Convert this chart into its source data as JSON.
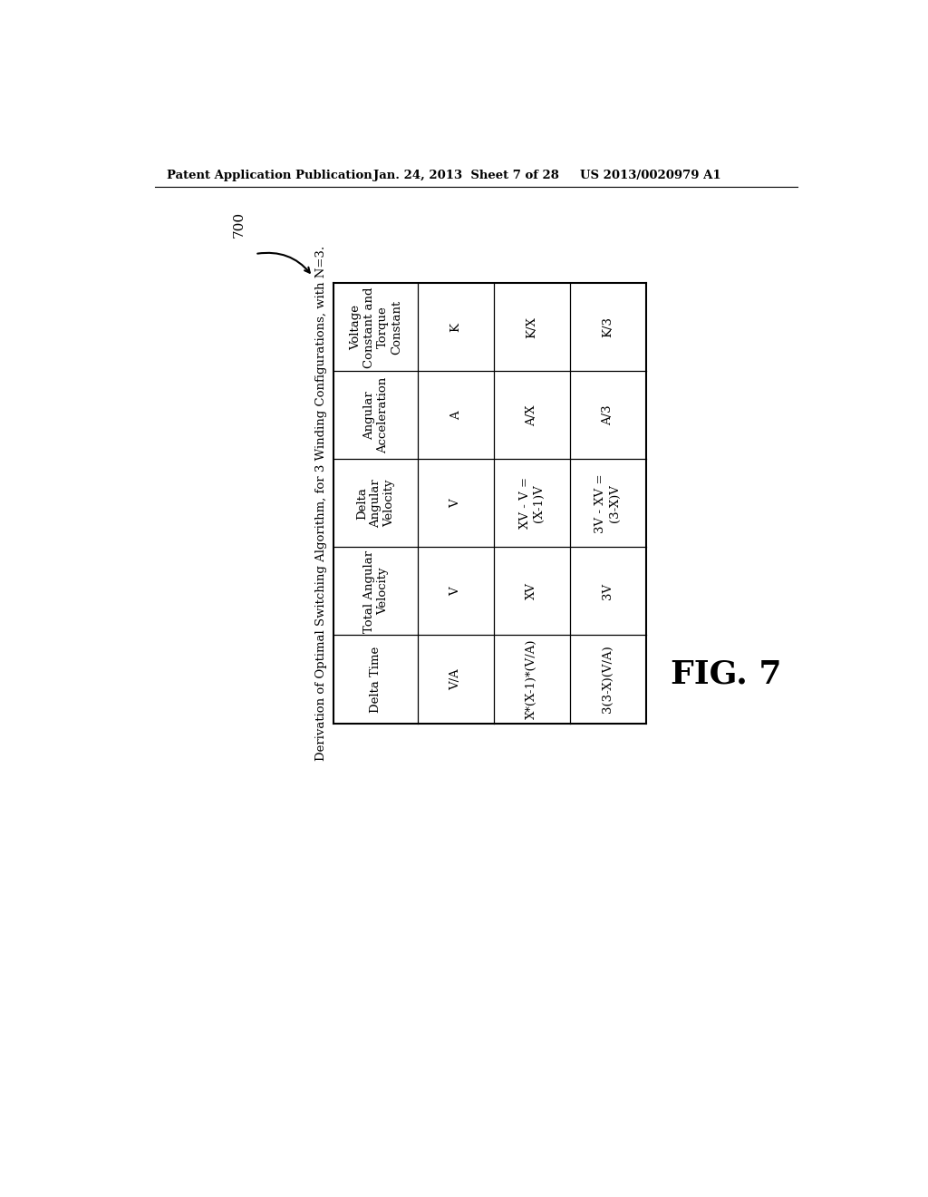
{
  "header_text": "Patent Application Publication",
  "date_text": "Jan. 24, 2013  Sheet 7 of 28",
  "patent_text": "US 2013/0020979 A1",
  "figure_label": "FIG. 7",
  "ref_number": "700",
  "table_title": "Derivation of Optimal Switching Algorithm, for 3 Winding Configurations, with N=3.",
  "col_headers": [
    "Voltage\nConstant and\nTorque\nConstant",
    "Angular\nAcceleration",
    "Delta\nAngular\nVelocity",
    "Total Angular\nVelocity",
    "Delta Time"
  ],
  "rows": [
    [
      "K",
      "A",
      "V",
      "V",
      "V/A"
    ],
    [
      "K/X",
      "A/X",
      "XV - V =\n(X-1)V",
      "XV",
      "X*(X-1)*(V/A)"
    ],
    [
      "K/3",
      "A/3",
      "3V - XV =\n(3-X)V",
      "3V",
      "3(3-X)(V/A)"
    ]
  ],
  "bg_color": "#ffffff",
  "text_color": "#000000",
  "line_color": "#000000"
}
